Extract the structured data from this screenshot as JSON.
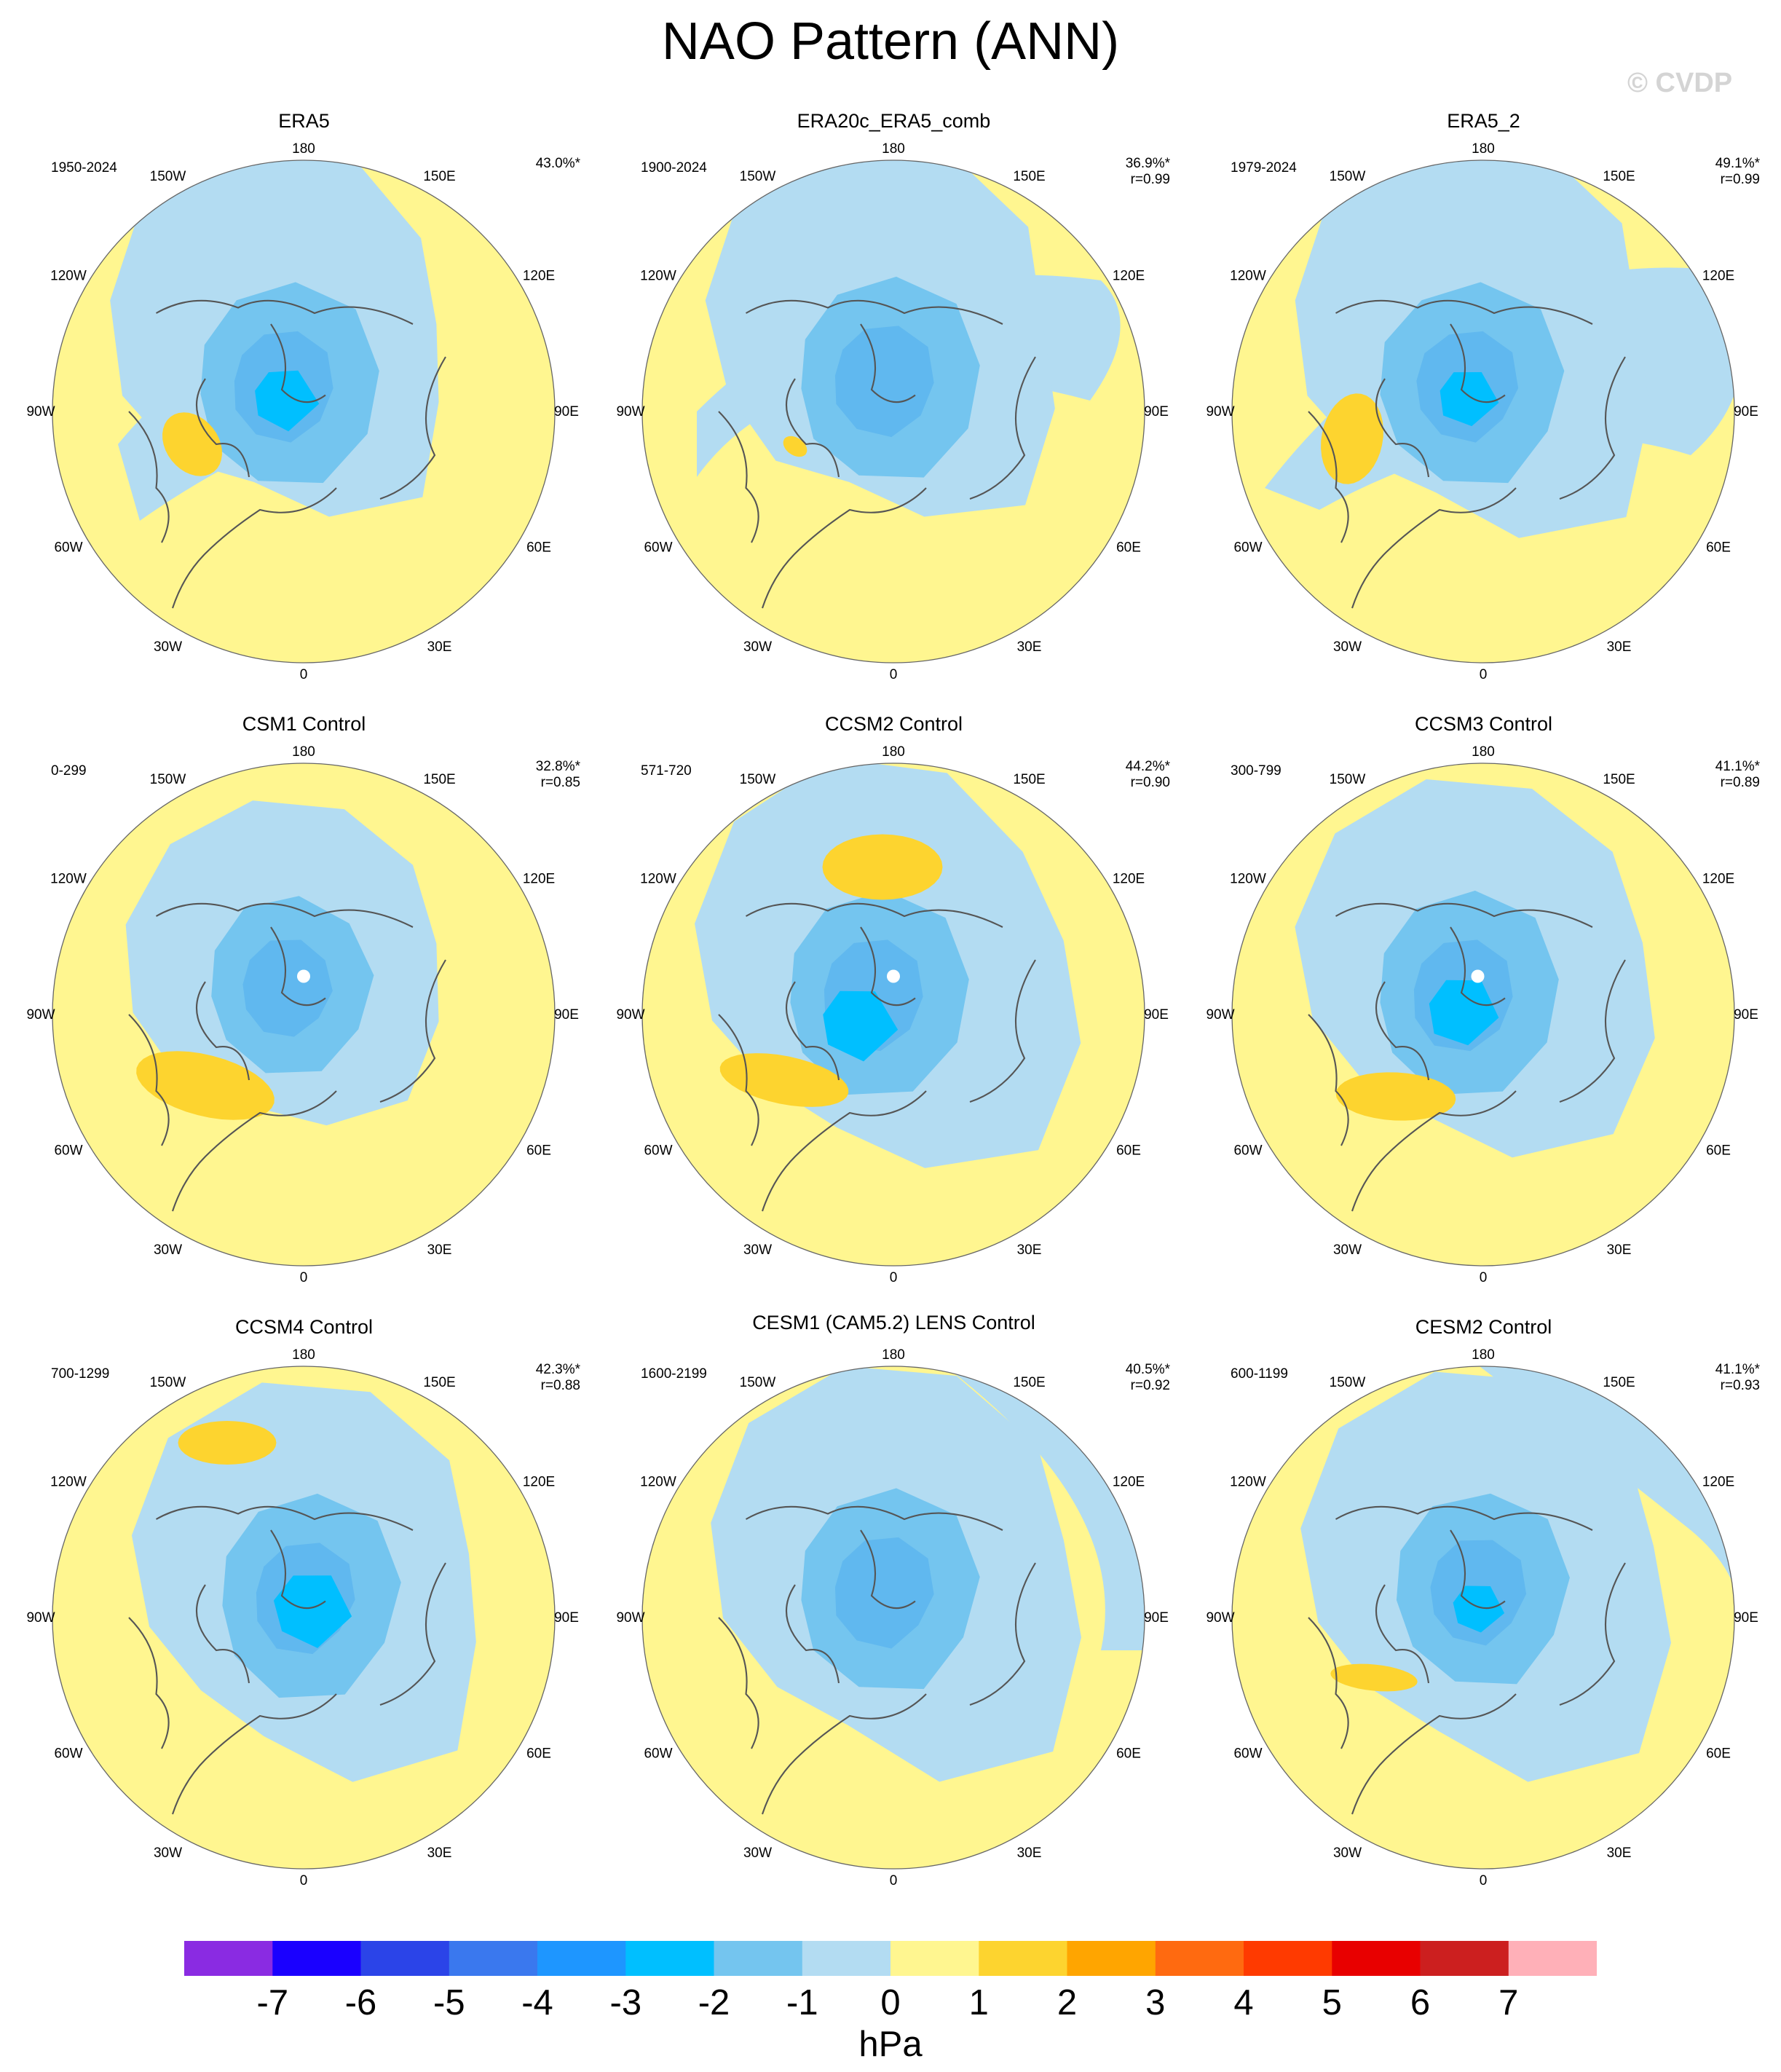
{
  "title": "NAO Pattern (ANN)",
  "watermark": "© CVDP",
  "lon_labels": [
    "180",
    "150E",
    "120E",
    "90E",
    "60E",
    "30E",
    "0",
    "30W",
    "60W",
    "90W",
    "120W",
    "150W"
  ],
  "colors": {
    "neg_light": "#b3dcf2",
    "neg_mid": "#74c5ef",
    "neg_dark": "#50adee",
    "neg_core": "#00bfff",
    "pos_light": "#fff690",
    "pos_mid": "#fdd42f",
    "coast": "#555555"
  },
  "panels": [
    {
      "title": "ERA5",
      "period": "1950-2024",
      "variance": "43.0%*",
      "r": ""
    },
    {
      "title": "ERA20c_ERA5_comb",
      "period": "1900-2024",
      "variance": "36.9%*",
      "r": "r=0.99"
    },
    {
      "title": "ERA5_2",
      "period": "1979-2024",
      "variance": "49.1%*",
      "r": "r=0.99"
    },
    {
      "title": "CSM1 Control",
      "period": "0-299",
      "variance": "32.8%*",
      "r": "r=0.85"
    },
    {
      "title": "CCSM2 Control",
      "period": "571-720",
      "variance": "44.2%*",
      "r": "r=0.90"
    },
    {
      "title": "CCSM3 Control",
      "period": "300-799",
      "variance": "41.1%*",
      "r": "r=0.89"
    },
    {
      "title": "CCSM4 Control",
      "period": "700-1299",
      "variance": "42.3%*",
      "r": "r=0.88"
    },
    {
      "title": "CESM1 (CAM5.2) LENS Control",
      "period": "1600-2199",
      "variance": "40.5%*",
      "r": "r=0.92"
    },
    {
      "title": "CESM2 Control",
      "period": "600-1199",
      "variance": "41.1%*",
      "r": "r=0.93"
    }
  ],
  "colorbar": {
    "colors": [
      "#8a2be2",
      "#1a00ff",
      "#2b44e8",
      "#3a78ee",
      "#1e96ff",
      "#00bfff",
      "#74c5ef",
      "#b3dcf2",
      "#fff690",
      "#fdd42f",
      "#ffa500",
      "#ff6a10",
      "#ff3a00",
      "#e80000",
      "#cc1f1f",
      "#ffb0b8"
    ],
    "ticks": [
      "-7",
      "-6",
      "-5",
      "-4",
      "-3",
      "-2",
      "-1",
      "0",
      "1",
      "2",
      "3",
      "4",
      "5",
      "6",
      "7"
    ],
    "units": "hPa"
  }
}
